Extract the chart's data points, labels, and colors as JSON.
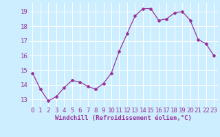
{
  "x": [
    0,
    1,
    2,
    3,
    4,
    5,
    6,
    7,
    8,
    9,
    10,
    11,
    12,
    13,
    14,
    15,
    16,
    17,
    18,
    19,
    20,
    21,
    22,
    23
  ],
  "y": [
    14.8,
    13.7,
    12.9,
    13.2,
    13.8,
    14.3,
    14.2,
    13.9,
    13.7,
    14.1,
    14.8,
    16.3,
    17.5,
    18.7,
    19.2,
    19.2,
    18.4,
    18.5,
    18.9,
    19.0,
    18.4,
    17.1,
    16.8,
    16.0
  ],
  "line_color": "#993399",
  "marker": "D",
  "marker_size": 2.0,
  "line_width": 0.9,
  "bg_color": "#cceeff",
  "grid_color": "#ffffff",
  "xlabel": "Windchill (Refroidissement éolien,°C)",
  "xlabel_color": "#993399",
  "xlabel_fontsize": 6.5,
  "tick_color": "#993399",
  "tick_fontsize": 6.5,
  "ylim": [
    12.5,
    19.6
  ],
  "xlim": [
    -0.5,
    23.5
  ],
  "yticks": [
    13,
    14,
    15,
    16,
    17,
    18,
    19
  ],
  "xticks": [
    0,
    1,
    2,
    3,
    4,
    5,
    6,
    7,
    8,
    9,
    10,
    11,
    12,
    13,
    14,
    15,
    16,
    17,
    18,
    19,
    20,
    21,
    22,
    23
  ]
}
